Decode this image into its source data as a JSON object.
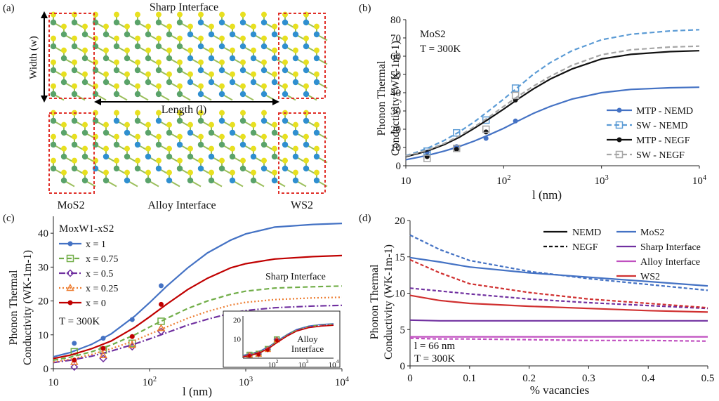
{
  "panel_labels": {
    "a": "(a)",
    "b": "(b)",
    "c": "(c)",
    "d": "(d)"
  },
  "panel_a": {
    "title": "Sharp Interface",
    "width_label": "Width (w)",
    "length_label": "Length (l)",
    "bottom_title": "Alloy Interface",
    "left_material": "MoS2",
    "right_material": "WS2",
    "colors": {
      "mo": "#5aa36a",
      "w": "#2f8fd0",
      "s": "#e8e020",
      "box": "#e0302a"
    }
  },
  "chart_data": [
    {
      "id": "b",
      "type": "line",
      "xscale": "log",
      "xlim": [
        10,
        10000
      ],
      "ylim": [
        0,
        80
      ],
      "yticks": [
        0,
        10,
        20,
        30,
        40,
        50,
        60,
        70,
        80
      ],
      "xticks": [
        "10",
        "10^2",
        "10^3",
        "10^4"
      ],
      "xlabel": "l (nm)",
      "ylabel_line1": "Phonon Thermal",
      "ylabel_line2": "Conductivity (WK-1m-1)",
      "annotations": [
        "MoS2",
        "T = 300K"
      ],
      "legend_position": "bottom-right",
      "series": [
        {
          "name": "MTP - NEMD",
          "color": "#4472c4",
          "dash": "",
          "marker": "dot",
          "curve_x": [
            10,
            13,
            17,
            25,
            35,
            50,
            70,
            100,
            140,
            200,
            300,
            500,
            1000,
            2000,
            5000,
            10000
          ],
          "curve_y": [
            3.3,
            4.5,
            5.8,
            8.1,
            10.5,
            13.5,
            16.8,
            20.5,
            24.5,
            28.6,
            32.5,
            36.5,
            40.0,
            41.8,
            42.7,
            43.0
          ],
          "points_x": [
            16.5,
            33,
            66,
            132
          ],
          "points_y": [
            7.5,
            10.5,
            15,
            24.5
          ]
        },
        {
          "name": "SW - NEMD",
          "color": "#5b9bd5",
          "dash": "7,4",
          "marker": "square",
          "curve_x": [
            10,
            13,
            17,
            25,
            35,
            50,
            70,
            100,
            140,
            200,
            300,
            500,
            1000,
            2000,
            5000,
            10000
          ],
          "curve_y": [
            5.5,
            7.5,
            9.8,
            14.0,
            18.5,
            24.0,
            30.0,
            36.5,
            43.0,
            50.0,
            56.5,
            63.0,
            69.0,
            72.0,
            73.8,
            74.5
          ],
          "points_x": [
            16.5,
            33,
            66,
            132
          ],
          "points_y": [
            8,
            18,
            25,
            42.5
          ]
        },
        {
          "name": "MTP - NEGF",
          "color": "#111111",
          "dash": "",
          "marker": "dot",
          "curve_x": [
            10,
            13,
            17,
            25,
            35,
            50,
            70,
            100,
            140,
            200,
            300,
            500,
            1000,
            2000,
            5000,
            10000
          ],
          "curve_y": [
            5.0,
            6.5,
            8.3,
            11.7,
            15.5,
            20.5,
            25.5,
            31.0,
            36.5,
            42.0,
            47.5,
            53.0,
            58.5,
            61.0,
            62.5,
            63.0
          ],
          "points_x": [
            16.5,
            33,
            66,
            132
          ],
          "points_y": [
            5,
            9,
            18.5,
            36
          ]
        },
        {
          "name": "SW - NEGF",
          "color": "#a6a6a6",
          "dash": "7,4",
          "marker": "square",
          "curve_x": [
            10,
            13,
            17,
            25,
            35,
            50,
            70,
            100,
            140,
            200,
            300,
            500,
            1000,
            2000,
            5000,
            10000
          ],
          "curve_y": [
            5.3,
            6.9,
            8.8,
            12.3,
            16.3,
            21.3,
            26.5,
            32.5,
            38.0,
            43.5,
            49.0,
            55.0,
            60.8,
            63.5,
            65.0,
            65.5
          ],
          "points_x": [
            16.5,
            33,
            66,
            132
          ],
          "points_y": [
            4,
            9.5,
            20,
            38.5
          ]
        }
      ]
    },
    {
      "id": "c",
      "type": "line",
      "xscale": "log",
      "xlim": [
        10,
        10000
      ],
      "ylim": [
        0,
        45
      ],
      "yticks": [
        0,
        10,
        20,
        30,
        40
      ],
      "xticks": [
        "10",
        "10^2",
        "10^3",
        "10^4"
      ],
      "xlabel": "l (nm)",
      "ylabel_line1": "Phonon Thermal",
      "ylabel_line2": "Conductivity (WK-1m-1)",
      "legend_title": "MoxW1-xS2",
      "annotations": [
        "Sharp Interface",
        "T = 300K"
      ],
      "inset": {
        "label_line1": "Alloy",
        "label_line2": "Interface",
        "yticks": [
          10,
          20
        ],
        "xticks": [
          "10^2",
          "10^3",
          "10^4"
        ],
        "ylim": [
          0,
          22
        ],
        "xlim": [
          10,
          10000
        ],
        "curve_x": [
          10,
          20,
          40,
          80,
          150,
          300,
          600,
          1500,
          4000,
          10000
        ],
        "curve_y": [
          1.5,
          2.5,
          4.0,
          6.5,
          9.5,
          12.5,
          15.0,
          16.8,
          17.6,
          18.0
        ],
        "points_x": [
          16.5,
          33,
          66,
          132
        ],
        "points_y": [
          2.0,
          2.5,
          5.0,
          10.0
        ]
      },
      "series": [
        {
          "name": "x = 1",
          "color": "#4472c4",
          "dash": "",
          "marker": "dot",
          "curve_x": [
            10,
            15,
            25,
            40,
            70,
            100,
            150,
            250,
            400,
            700,
            1000,
            2000,
            5000,
            10000
          ],
          "curve_y": [
            3.5,
            4.8,
            7.2,
            10.3,
            15.5,
            19.5,
            24.3,
            29.8,
            34.2,
            38.0,
            39.8,
            41.8,
            42.6,
            42.9
          ],
          "points_x": [
            16.5,
            33,
            66,
            132
          ],
          "points_y": [
            7.5,
            9,
            14.5,
            24.5
          ]
        },
        {
          "name": "x = 0.75",
          "color": "#70ad47",
          "dash": "7,4",
          "marker": "square",
          "curve_x": [
            10,
            15,
            25,
            40,
            70,
            100,
            150,
            250,
            400,
            700,
            1000,
            2000,
            5000,
            10000
          ],
          "curve_y": [
            2.5,
            3.4,
            5.0,
            7.0,
            10.0,
            12.3,
            14.8,
            17.8,
            20.0,
            22.0,
            22.9,
            23.8,
            24.2,
            24.4
          ],
          "points_x": [
            16.5,
            33,
            66,
            132
          ],
          "points_y": [
            5,
            5.5,
            7.5,
            14
          ]
        },
        {
          "name": "x = 0.5",
          "color": "#7030a0",
          "dash": "9,3,2,3",
          "marker": "diamond",
          "curve_x": [
            10,
            15,
            25,
            40,
            70,
            100,
            150,
            250,
            400,
            700,
            1000,
            2000,
            5000,
            10000
          ],
          "curve_y": [
            1.8,
            2.5,
            3.7,
            5.2,
            7.3,
            8.8,
            10.6,
            12.9,
            14.6,
            16.4,
            17.2,
            18.0,
            18.5,
            18.7
          ],
          "points_x": [
            16.5,
            33,
            66,
            132
          ],
          "points_y": [
            0.5,
            3,
            6.5,
            11
          ]
        },
        {
          "name": "x = 0.25",
          "color": "#ed7d31",
          "dash": "2,3",
          "marker": "triangle",
          "curve_x": [
            10,
            15,
            25,
            40,
            70,
            100,
            150,
            250,
            400,
            700,
            1000,
            2000,
            5000,
            10000
          ],
          "curve_y": [
            2.0,
            2.8,
            4.2,
            5.9,
            8.3,
            10.2,
            12.3,
            14.9,
            16.9,
            18.8,
            19.6,
            20.4,
            20.9,
            21.1
          ],
          "points_x": [
            16.5,
            33,
            66,
            132
          ],
          "points_y": [
            2,
            4,
            7,
            12
          ]
        },
        {
          "name": "x = 0",
          "color": "#c00000",
          "dash": "",
          "marker": "dot",
          "curve_x": [
            10,
            15,
            25,
            40,
            70,
            100,
            150,
            250,
            400,
            700,
            1000,
            2000,
            5000,
            10000
          ],
          "curve_y": [
            3.0,
            4.0,
            5.9,
            8.2,
            12.2,
            15.3,
            19.0,
            23.4,
            26.7,
            29.8,
            31.0,
            32.4,
            33.1,
            33.4
          ],
          "points_x": [
            16.5,
            33,
            66,
            132
          ],
          "points_y": [
            2.5,
            6,
            9.5,
            19
          ]
        }
      ]
    },
    {
      "id": "d",
      "type": "line",
      "xscale": "linear",
      "xlim": [
        0,
        0.5
      ],
      "ylim": [
        0,
        20
      ],
      "yticks": [
        0,
        5,
        10,
        15,
        20
      ],
      "xticks": [
        "0",
        "0.1",
        "0.2",
        "0.3",
        "0.4",
        "0.5"
      ],
      "xlabel": "% vacancies",
      "ylabel_line1": "Phonon Thermal",
      "ylabel_line2": "Conductivity (WK-1m-1)",
      "annotations": [
        "l = 66 nm",
        "T = 300K"
      ],
      "legend_position": "top-right",
      "style_legend": [
        {
          "name": "NEMD",
          "dash": ""
        },
        {
          "name": "NEGF",
          "dash": "5,3"
        }
      ],
      "series": [
        {
          "name": "MoS2",
          "color": "#4472c4",
          "x": [
            0,
            0.05,
            0.1,
            0.2,
            0.3,
            0.4,
            0.5
          ],
          "nemd": [
            14.9,
            14.3,
            13.6,
            12.8,
            12.2,
            11.6,
            11.0
          ],
          "negf": [
            18.0,
            16.0,
            14.5,
            13.0,
            12.0,
            11.2,
            10.4
          ]
        },
        {
          "name": "Sharp Interface",
          "color": "#7030a0",
          "x": [
            0,
            0.05,
            0.1,
            0.2,
            0.3,
            0.4,
            0.5
          ],
          "nemd": [
            6.3,
            6.2,
            6.2,
            6.2,
            6.2,
            6.2,
            6.2
          ],
          "negf": [
            10.7,
            10.3,
            9.9,
            9.2,
            8.7,
            8.3,
            7.9
          ]
        },
        {
          "name": "Alloy Interface",
          "color": "#c050c0",
          "x": [
            0,
            0.05,
            0.1,
            0.2,
            0.3,
            0.4,
            0.5
          ],
          "nemd": [
            4.0,
            4.0,
            4.0,
            4.0,
            4.0,
            4.0,
            4.0
          ],
          "negf": [
            3.8,
            3.7,
            3.7,
            3.6,
            3.5,
            3.5,
            3.4
          ]
        },
        {
          "name": "WS2",
          "color": "#d03030",
          "x": [
            0,
            0.05,
            0.1,
            0.2,
            0.3,
            0.4,
            0.5
          ],
          "nemd": [
            9.7,
            9.0,
            8.6,
            8.2,
            7.9,
            7.6,
            7.4
          ],
          "negf": [
            14.6,
            12.8,
            11.3,
            10.1,
            9.2,
            8.6,
            8.0
          ]
        }
      ]
    }
  ]
}
